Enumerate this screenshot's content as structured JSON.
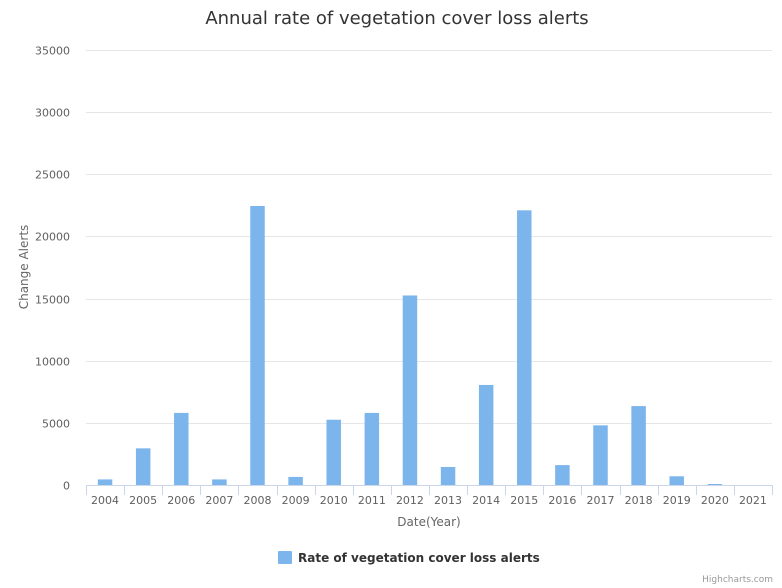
{
  "chart_data": {
    "type": "bar",
    "title": "Annual rate of vegetation cover loss alerts",
    "xlabel": "Date(Year)",
    "ylabel": "Change Alerts",
    "categories": [
      "2004",
      "2005",
      "2006",
      "2007",
      "2008",
      "2009",
      "2010",
      "2011",
      "2012",
      "2013",
      "2014",
      "2015",
      "2016",
      "2017",
      "2018",
      "2019",
      "2020",
      "2021"
    ],
    "series": [
      {
        "name": "Rate of vegetation cover loss alerts",
        "values": [
          450,
          2950,
          5800,
          450,
          22450,
          650,
          5250,
          5800,
          15250,
          1450,
          8050,
          22100,
          1600,
          4800,
          6350,
          700,
          80,
          0
        ]
      }
    ],
    "ylim": [
      0,
      35000
    ],
    "yticks": [
      "0",
      "5000",
      "10000",
      "15000",
      "20000",
      "25000",
      "30000",
      "35000"
    ],
    "grid": true,
    "legend_position": "bottom-center",
    "colors": {
      "bar": "#7cb5ec",
      "grid": "#e6e6e6",
      "axis": "#ccd6eb"
    }
  },
  "credits": "Highcharts.com"
}
